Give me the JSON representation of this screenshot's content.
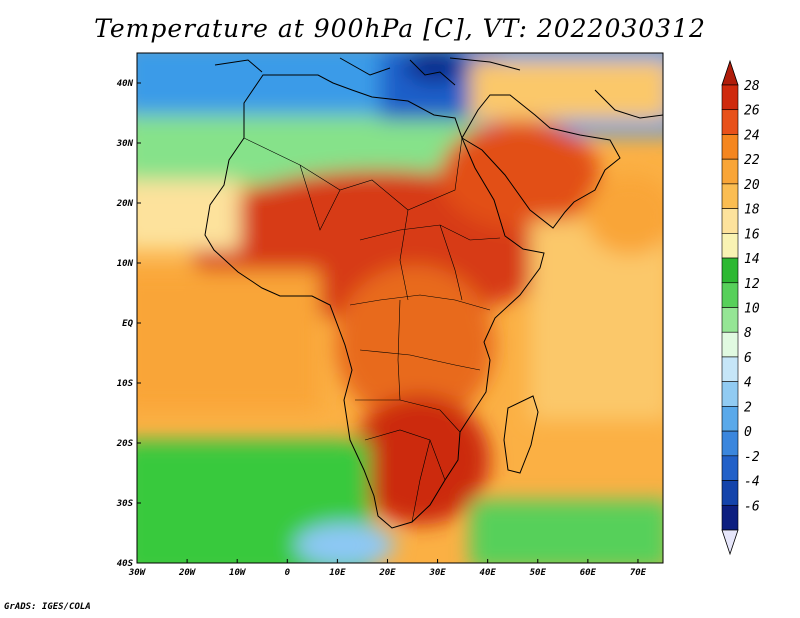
{
  "title": "Temperature at 900hPa [C], VT: 2022030312",
  "credit": "GrADS: IGES/COLA",
  "map": {
    "lon_range": [
      -30,
      75
    ],
    "lat_range": [
      -40,
      45
    ],
    "lon_ticks": [
      "30W",
      "20W",
      "10W",
      "0",
      "10E",
      "20E",
      "30E",
      "40E",
      "50E",
      "60E",
      "70E"
    ],
    "lat_ticks": [
      "40S",
      "30S",
      "20S",
      "10S",
      "EQ",
      "10N",
      "20N",
      "30N",
      "40N"
    ],
    "field_regions": [
      {
        "name": "atlantic-north",
        "color": "#3a9be8"
      },
      {
        "name": "mediterranean",
        "color": "#3a9be8"
      },
      {
        "name": "sahara-north",
        "color": "#b4f0b4"
      },
      {
        "name": "sahel-hot",
        "color": "#d73b13"
      },
      {
        "name": "arabia-hot",
        "color": "#e24f16"
      },
      {
        "name": "equatorial-atlantic",
        "color": "#fbb044"
      },
      {
        "name": "central-africa",
        "color": "#e86a1c"
      },
      {
        "name": "southern-africa-hot",
        "color": "#cc2a0f"
      },
      {
        "name": "south-atlantic-cool",
        "color": "#37c93c"
      },
      {
        "name": "southern-ocean-blue",
        "color": "#8dc8f5"
      },
      {
        "name": "indian-ocean",
        "color": "#fbc86a"
      }
    ]
  },
  "colorbar": {
    "labels": [
      "28",
      "26",
      "24",
      "22",
      "20",
      "18",
      "16",
      "14",
      "12",
      "10",
      "8",
      "6",
      "4",
      "2",
      "0",
      "-2",
      "-4",
      "-6"
    ],
    "colors": [
      "#cf2a0e",
      "#e8511a",
      "#f5861f",
      "#f9a537",
      "#fbbd52",
      "#fde29c",
      "#f9f3b3",
      "#2db832",
      "#57d05a",
      "#95e695",
      "#e1fae1",
      "#c6e6f8",
      "#91cbf2",
      "#5aa9ea",
      "#3a86dd",
      "#2160c8",
      "#1444ab",
      "#0d1f80"
    ],
    "top_arrow_color": "#b01d0b",
    "bottom_arrow_color": "#e6e6fa",
    "min": -6,
    "max": 28,
    "step": 2
  }
}
